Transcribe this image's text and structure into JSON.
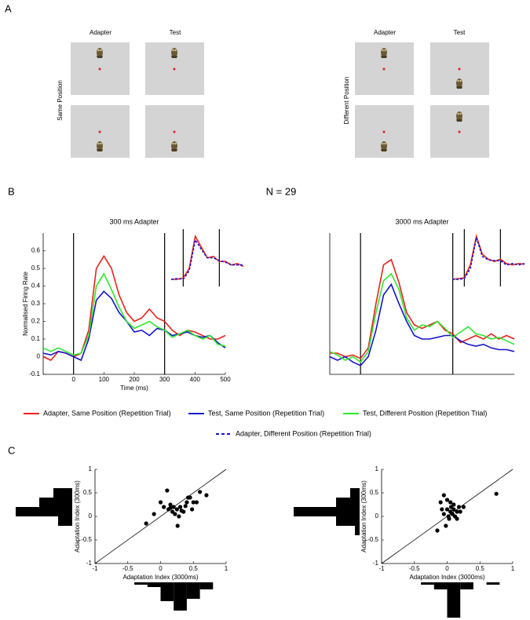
{
  "panels": {
    "a": {
      "label": "A",
      "columns": [
        "Adapter",
        "Test"
      ],
      "left_row_label": "Same Position",
      "right_row_label": "Different Position"
    },
    "b": {
      "label": "B",
      "n": "N = 29"
    },
    "c": {
      "label": "C"
    }
  },
  "chart_data": [
    {
      "type": "line",
      "title": "300 ms Adapter",
      "xlabel": "Time (ms)",
      "ylabel": "Normalised Firing Rate",
      "x": [
        -100,
        -75,
        -50,
        -25,
        0,
        25,
        50,
        75,
        100,
        125,
        150,
        175,
        200,
        225,
        250,
        275,
        300,
        325,
        350,
        375,
        400,
        425,
        450,
        475,
        500
      ],
      "series": [
        {
          "name": "Adapter, Same Position (Repetition Trial)",
          "color": "#e8221c",
          "values": [
            0.0,
            -0.02,
            0.03,
            0.02,
            0.0,
            0.02,
            0.15,
            0.5,
            0.57,
            0.5,
            0.35,
            0.25,
            0.2,
            0.22,
            0.27,
            0.22,
            0.2,
            0.15,
            0.12,
            0.15,
            0.14,
            0.12,
            0.1,
            0.1,
            0.12
          ]
        },
        {
          "name": "Test, Same Position (Repetition Trial)",
          "color": "#1515c8",
          "values": [
            0.02,
            0.01,
            0.03,
            0.02,
            0.0,
            -0.02,
            0.1,
            0.32,
            0.37,
            0.33,
            0.25,
            0.2,
            0.14,
            0.15,
            0.12,
            0.16,
            0.15,
            0.12,
            0.13,
            0.14,
            0.12,
            0.11,
            0.12,
            0.08,
            0.05
          ]
        },
        {
          "name": "Test, Different Position (Repetition Trial)",
          "color": "#2ee82e",
          "values": [
            0.05,
            0.03,
            0.05,
            0.03,
            0.01,
            0.02,
            0.12,
            0.4,
            0.47,
            0.38,
            0.28,
            0.2,
            0.16,
            0.18,
            0.2,
            0.17,
            0.15,
            0.11,
            0.13,
            0.15,
            0.12,
            0.1,
            0.12,
            0.07,
            0.06
          ]
        }
      ],
      "xlim": [
        -100,
        500
      ],
      "ylim": [
        -0.1,
        0.7
      ],
      "xticks": [
        0,
        100,
        200,
        300,
        400,
        500
      ],
      "yticks": [
        -0.1,
        0,
        0.1,
        0.2,
        0.3,
        0.4,
        0.5,
        0.6
      ],
      "vlines": [
        0,
        300
      ]
    },
    {
      "type": "line",
      "x": [
        -100,
        -50,
        0,
        50,
        100,
        150,
        200,
        250,
        300,
        350,
        400,
        450,
        500
      ],
      "series": [
        {
          "color": "#e8221c",
          "values": [
            0,
            0,
            0.02,
            0.15,
            0.6,
            0.45,
            0.3,
            0.32,
            0.25,
            0.25,
            0.2,
            0.22,
            0.18
          ]
        },
        {
          "name": "Adapter, Different Position (Repetition Trial)",
          "color": "#1515c8",
          "dash": true,
          "values": [
            0,
            0.01,
            0,
            0.12,
            0.55,
            0.42,
            0.3,
            0.3,
            0.26,
            0.24,
            0.2,
            0.2,
            0.2
          ]
        }
      ],
      "xlim": [
        -100,
        500
      ],
      "ylim": [
        -0.1,
        0.7
      ],
      "vlines": [
        0,
        300
      ]
    },
    {
      "type": "line",
      "title": "3000 ms Adapter",
      "x": [
        -100,
        -75,
        -50,
        -25,
        0,
        25,
        50,
        75,
        100,
        125,
        150,
        175,
        200,
        225,
        250,
        275,
        300,
        325,
        350,
        375,
        400,
        425,
        450,
        475,
        500
      ],
      "series": [
        {
          "color": "#e8221c",
          "values": [
            0.02,
            0.02,
            0.0,
            0.01,
            -0.01,
            0.05,
            0.3,
            0.52,
            0.55,
            0.42,
            0.25,
            0.18,
            0.16,
            0.18,
            0.2,
            0.15,
            0.13,
            0.08,
            0.1,
            0.12,
            0.1,
            0.13,
            0.1,
            0.12,
            0.1
          ]
        },
        {
          "color": "#1515c8",
          "values": [
            0.0,
            -0.02,
            0.0,
            -0.03,
            -0.05,
            0.0,
            0.15,
            0.35,
            0.41,
            0.3,
            0.2,
            0.12,
            0.1,
            0.1,
            0.11,
            0.12,
            0.12,
            0.09,
            0.07,
            0.06,
            0.07,
            0.05,
            0.04,
            0.04,
            0.03
          ]
        },
        {
          "color": "#2ee82e",
          "values": [
            0.03,
            0.01,
            -0.02,
            0.0,
            -0.03,
            0.03,
            0.25,
            0.43,
            0.47,
            0.38,
            0.22,
            0.15,
            0.18,
            0.17,
            0.2,
            0.16,
            0.11,
            0.14,
            0.17,
            0.13,
            0.12,
            0.1,
            0.11,
            0.09,
            0.07
          ]
        }
      ],
      "xlim": [
        -100,
        500
      ],
      "ylim": [
        -0.1,
        0.7
      ],
      "vlines": [
        0,
        300
      ]
    },
    {
      "type": "line",
      "x": [
        -100,
        -50,
        0,
        50,
        100,
        150,
        200,
        250,
        300,
        350,
        400,
        450,
        500
      ],
      "series": [
        {
          "color": "#e8221c",
          "values": [
            0,
            0.01,
            0.02,
            0.2,
            0.6,
            0.35,
            0.28,
            0.25,
            0.28,
            0.22,
            0.2,
            0.22,
            0.21
          ]
        },
        {
          "color": "#1515c8",
          "dash": true,
          "values": [
            0,
            0,
            0.01,
            0.15,
            0.58,
            0.32,
            0.27,
            0.26,
            0.26,
            0.2,
            0.22,
            0.2,
            0.22
          ]
        }
      ],
      "xlim": [
        -100,
        500
      ],
      "ylim": [
        -0.1,
        0.7
      ],
      "vlines": [
        0,
        300
      ]
    },
    {
      "type": "scatter",
      "xlabel": "Adaptation Index (3000ms)",
      "ylabel": "Adaptation Index (300ms)",
      "color": "#000000",
      "x": [
        0.0,
        -0.1,
        -0.22,
        0.1,
        0.15,
        0.2,
        0.12,
        0.18,
        0.25,
        0.3,
        0.22,
        0.28,
        0.35,
        0.4,
        0.45,
        0.5,
        0.48,
        0.55,
        0.6,
        0.7,
        0.38,
        0.26,
        0.15,
        0.05,
        0.32,
        0.42
      ],
      "values": [
        0.3,
        0.05,
        -0.15,
        0.55,
        0.25,
        0.2,
        0.15,
        0.1,
        0.15,
        0.2,
        0.05,
        0.0,
        0.1,
        0.3,
        0.4,
        0.3,
        0.15,
        0.3,
        0.52,
        0.45,
        0.22,
        -0.2,
        0.18,
        0.2,
        0.12,
        0.4
      ],
      "xlim": [
        -1,
        1
      ],
      "ylim": [
        -1,
        1
      ],
      "xticks": [
        -1,
        -0.5,
        0,
        0.5,
        1
      ],
      "yticks": [
        -1,
        -0.5,
        0,
        0.5,
        1
      ],
      "x_hist": {
        "bins": [
          -0.4,
          -0.2,
          0,
          0.2,
          0.4,
          0.6,
          0.8
        ],
        "counts": [
          1,
          2,
          8,
          12,
          7,
          3
        ]
      },
      "y_hist": {
        "bins": [
          -0.2,
          0,
          0.2,
          0.4,
          0.6
        ],
        "counts": [
          3,
          12,
          7,
          4
        ]
      }
    },
    {
      "type": "scatter",
      "xlabel": "Adaptation Index (3000ms)",
      "ylabel": "Adaptation Index (300ms)",
      "color": "#000000",
      "x": [
        -0.05,
        0.0,
        -0.1,
        0.05,
        -0.15,
        -0.02,
        0.0,
        0.05,
        0.08,
        0.1,
        0.12,
        0.15,
        0.2,
        0.18,
        0.25,
        -0.05,
        0.02,
        0.06,
        0.1,
        -0.08,
        0.15,
        0.75,
        0.03
      ],
      "values": [
        0.45,
        0.35,
        0.3,
        0.3,
        -0.3,
        -0.2,
        0.15,
        0.1,
        0.05,
        0.15,
        0.0,
        -0.05,
        0.1,
        0.2,
        0.2,
        0.05,
        0.0,
        0.2,
        0.25,
        0.15,
        0.1,
        0.48,
        -0.05
      ],
      "xlim": [
        -1,
        1
      ],
      "ylim": [
        -1,
        1
      ],
      "xticks": [
        -1,
        -0.5,
        0,
        0.5,
        1
      ],
      "yticks": [
        -1,
        -0.5,
        0,
        0.5,
        1
      ],
      "x_hist": {
        "bins": [
          -0.4,
          -0.2,
          0,
          0.2,
          0.4,
          0.6,
          0.8
        ],
        "counts": [
          1,
          3,
          15,
          3,
          0,
          1
        ]
      },
      "y_hist": {
        "bins": [
          -0.4,
          -0.2,
          0,
          0.2,
          0.4,
          0.6
        ],
        "counts": [
          1,
          5,
          14,
          5,
          2
        ]
      }
    }
  ]
}
